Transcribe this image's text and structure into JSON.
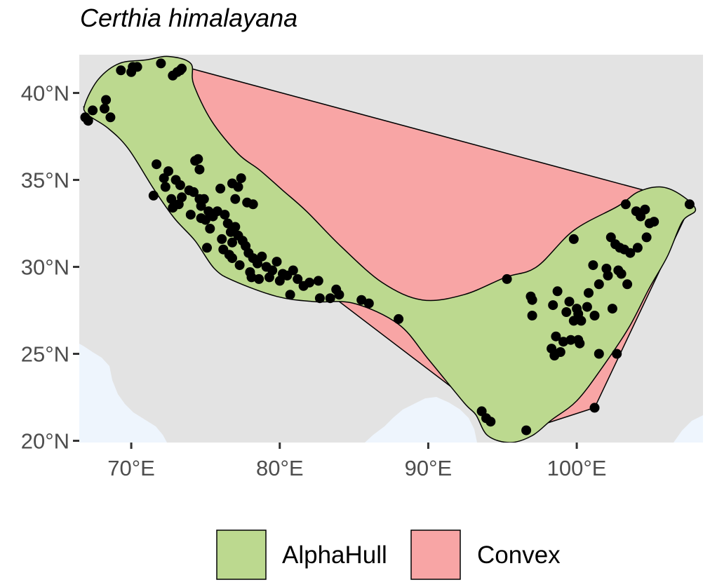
{
  "title": "Certhia himalayana",
  "chart_data": {
    "type": "map",
    "title": "Certhia himalayana",
    "xlim": [
      66.5,
      108.5
    ],
    "ylim": [
      19.9,
      42.2
    ],
    "x_ticks": [
      {
        "value": 70,
        "label": "70°E"
      },
      {
        "value": 80,
        "label": "80°E"
      },
      {
        "value": 90,
        "label": "90°E"
      },
      {
        "value": 100,
        "label": "100°E"
      }
    ],
    "y_ticks": [
      {
        "value": 20,
        "label": "20°N"
      },
      {
        "value": 25,
        "label": "25°N"
      },
      {
        "value": 30,
        "label": "30°N"
      },
      {
        "value": 35,
        "label": "35°N"
      },
      {
        "value": 40,
        "label": "40°N"
      }
    ],
    "legend": {
      "position": "bottom",
      "entries": [
        {
          "label": "AlphaHull",
          "color": "#bcd98f"
        },
        {
          "label": "Convex",
          "color": "#f8a5a5"
        }
      ]
    },
    "colors": {
      "land": "#e3e3e3",
      "sea": "#eef5fd",
      "alphahull_fill": "#bcd98f",
      "convex_fill": "#f8a5a5",
      "points": "#000000"
    },
    "convex_hull": [
      [
        72.3,
        41.8
      ],
      [
        106.3,
        34.0
      ],
      [
        107.7,
        33.6
      ],
      [
        101.2,
        21.9
      ],
      [
        96.5,
        20.6
      ],
      [
        93.7,
        21.7
      ],
      [
        66.8,
        39.2
      ],
      [
        69.6,
        41.4
      ]
    ],
    "alpha_hull": [
      [
        66.9,
        39.4
      ],
      [
        67.8,
        40.8
      ],
      [
        69.2,
        41.7
      ],
      [
        71.0,
        41.9
      ],
      [
        72.5,
        42.1
      ],
      [
        74.0,
        41.7
      ],
      [
        74.2,
        40.5
      ],
      [
        75.4,
        38.4
      ],
      [
        77.2,
        36.5
      ],
      [
        78.6,
        35.6
      ],
      [
        80.2,
        34.4
      ],
      [
        81.8,
        33.2
      ],
      [
        84.1,
        31.2
      ],
      [
        86.9,
        29.1
      ],
      [
        89.6,
        28.1
      ],
      [
        92.4,
        28.4
      ],
      [
        95.2,
        29.4
      ],
      [
        97.3,
        30.0
      ],
      [
        99.8,
        32.1
      ],
      [
        102.8,
        33.5
      ],
      [
        104.1,
        34.3
      ],
      [
        105.6,
        34.6
      ],
      [
        106.9,
        34.2
      ],
      [
        108.0,
        33.3
      ],
      [
        107.1,
        32.6
      ],
      [
        106.1,
        30.6
      ],
      [
        104.9,
        28.8
      ],
      [
        103.5,
        26.5
      ],
      [
        101.7,
        24.2
      ],
      [
        100.0,
        22.3
      ],
      [
        98.3,
        21.2
      ],
      [
        97.0,
        20.3
      ],
      [
        95.5,
        19.9
      ],
      [
        94.0,
        20.3
      ],
      [
        93.2,
        21.5
      ],
      [
        92.4,
        22.2
      ],
      [
        90.0,
        24.7
      ],
      [
        88.0,
        26.7
      ],
      [
        85.0,
        27.9
      ],
      [
        82.3,
        28.0
      ],
      [
        79.8,
        28.3
      ],
      [
        76.9,
        29.2
      ],
      [
        75.6,
        29.9
      ],
      [
        74.3,
        31.5
      ],
      [
        72.9,
        32.8
      ],
      [
        71.5,
        34.5
      ],
      [
        69.8,
        36.8
      ],
      [
        68.4,
        38.0
      ],
      [
        67.0,
        38.8
      ]
    ],
    "points": [
      [
        72.0,
        41.7
      ],
      [
        73.4,
        41.4
      ],
      [
        73.1,
        41.2
      ],
      [
        70.4,
        41.5
      ],
      [
        70.1,
        41.5
      ],
      [
        70.0,
        41.2
      ],
      [
        69.3,
        41.3
      ],
      [
        72.8,
        41.0
      ],
      [
        73.3,
        41.3
      ],
      [
        68.3,
        39.6
      ],
      [
        68.2,
        39.1
      ],
      [
        67.4,
        39.0
      ],
      [
        68.6,
        38.6
      ],
      [
        66.9,
        38.6
      ],
      [
        67.1,
        38.4
      ],
      [
        71.7,
        35.9
      ],
      [
        72.5,
        35.5
      ],
      [
        72.2,
        35.1
      ],
      [
        73.0,
        35.0
      ],
      [
        72.3,
        34.6
      ],
      [
        73.3,
        34.7
      ],
      [
        74.3,
        36.1
      ],
      [
        74.5,
        36.2
      ],
      [
        74.6,
        35.6
      ],
      [
        73.9,
        34.4
      ],
      [
        73.4,
        34.0
      ],
      [
        72.7,
        33.9
      ],
      [
        71.5,
        34.1
      ],
      [
        72.8,
        33.4
      ],
      [
        73.2,
        33.6
      ],
      [
        74.0,
        33.0
      ],
      [
        74.2,
        34.3
      ],
      [
        74.6,
        33.9
      ],
      [
        74.7,
        33.5
      ],
      [
        74.9,
        33.9
      ],
      [
        75.2,
        33.2
      ],
      [
        75.0,
        32.7
      ],
      [
        75.5,
        32.9
      ],
      [
        75.8,
        33.2
      ],
      [
        76.0,
        34.5
      ],
      [
        76.3,
        33.0
      ],
      [
        76.5,
        32.5
      ],
      [
        76.7,
        32.0
      ],
      [
        77.0,
        32.3
      ],
      [
        77.2,
        31.8
      ],
      [
        76.8,
        31.4
      ],
      [
        77.5,
        31.5
      ],
      [
        77.7,
        31.2
      ],
      [
        77.9,
        30.8
      ],
      [
        78.2,
        30.5
      ],
      [
        78.5,
        30.2
      ],
      [
        78.8,
        30.6
      ],
      [
        79.1,
        30.0
      ],
      [
        79.5,
        29.8
      ],
      [
        79.8,
        30.3
      ],
      [
        80.2,
        29.6
      ],
      [
        80.5,
        29.5
      ],
      [
        80.9,
        29.8
      ],
      [
        81.2,
        29.3
      ],
      [
        78.1,
        29.4
      ],
      [
        78.6,
        29.3
      ],
      [
        75.1,
        31.1
      ],
      [
        76.2,
        31.0
      ],
      [
        76.6,
        30.7
      ],
      [
        77.4,
        35.1
      ],
      [
        77.8,
        33.7
      ],
      [
        77.2,
        34.6
      ],
      [
        77.0,
        33.9
      ],
      [
        78.2,
        33.6
      ],
      [
        76.8,
        34.8
      ],
      [
        81.6,
        28.9
      ],
      [
        82.6,
        29.2
      ],
      [
        82.0,
        29.1
      ],
      [
        83.8,
        28.7
      ],
      [
        83.4,
        28.2
      ],
      [
        84.0,
        28.4
      ],
      [
        82.7,
        28.2
      ],
      [
        85.5,
        28.1
      ],
      [
        86.0,
        27.9
      ],
      [
        88.0,
        27.0
      ],
      [
        80.7,
        28.4
      ],
      [
        74.7,
        32.8
      ],
      [
        75.3,
        32.2
      ],
      [
        76.1,
        31.6
      ],
      [
        76.8,
        30.5
      ],
      [
        77.3,
        30.1
      ],
      [
        78.0,
        29.7
      ],
      [
        79.3,
        29.4
      ],
      [
        80.0,
        29.2
      ],
      [
        95.3,
        29.3
      ],
      [
        97.0,
        28.1
      ],
      [
        97.0,
        27.2
      ],
      [
        96.9,
        28.3
      ],
      [
        98.4,
        27.8
      ],
      [
        98.7,
        28.6
      ],
      [
        99.8,
        31.6
      ],
      [
        99.5,
        28.0
      ],
      [
        99.3,
        27.4
      ],
      [
        99.8,
        26.9
      ],
      [
        100.1,
        27.3
      ],
      [
        100.3,
        26.9
      ],
      [
        100.0,
        27.6
      ],
      [
        100.7,
        27.7
      ],
      [
        101.2,
        27.2
      ],
      [
        100.8,
        28.5
      ],
      [
        101.1,
        30.1
      ],
      [
        102.0,
        29.9
      ],
      [
        102.1,
        29.5
      ],
      [
        101.5,
        29.0
      ],
      [
        102.8,
        29.8
      ],
      [
        103.0,
        29.6
      ],
      [
        103.4,
        29.0
      ],
      [
        102.3,
        31.7
      ],
      [
        102.6,
        31.3
      ],
      [
        102.9,
        31.1
      ],
      [
        103.2,
        31.0
      ],
      [
        103.6,
        30.8
      ],
      [
        104.1,
        31.1
      ],
      [
        103.3,
        33.6
      ],
      [
        104.0,
        33.2
      ],
      [
        104.6,
        33.3
      ],
      [
        104.9,
        32.5
      ],
      [
        105.2,
        32.6
      ],
      [
        104.7,
        31.7
      ],
      [
        104.3,
        32.9
      ],
      [
        102.4,
        27.6
      ],
      [
        98.3,
        25.3
      ],
      [
        98.9,
        25.1
      ],
      [
        99.1,
        25.7
      ],
      [
        99.6,
        25.8
      ],
      [
        100.2,
        25.6
      ],
      [
        100.1,
        25.8
      ],
      [
        98.5,
        24.9
      ],
      [
        101.5,
        25.0
      ],
      [
        102.7,
        25.0
      ],
      [
        101.2,
        21.9
      ],
      [
        93.6,
        21.7
      ],
      [
        93.9,
        21.3
      ],
      [
        94.2,
        21.1
      ],
      [
        96.6,
        20.6
      ],
      [
        107.6,
        33.6
      ],
      [
        98.6,
        26.0
      ]
    ]
  }
}
